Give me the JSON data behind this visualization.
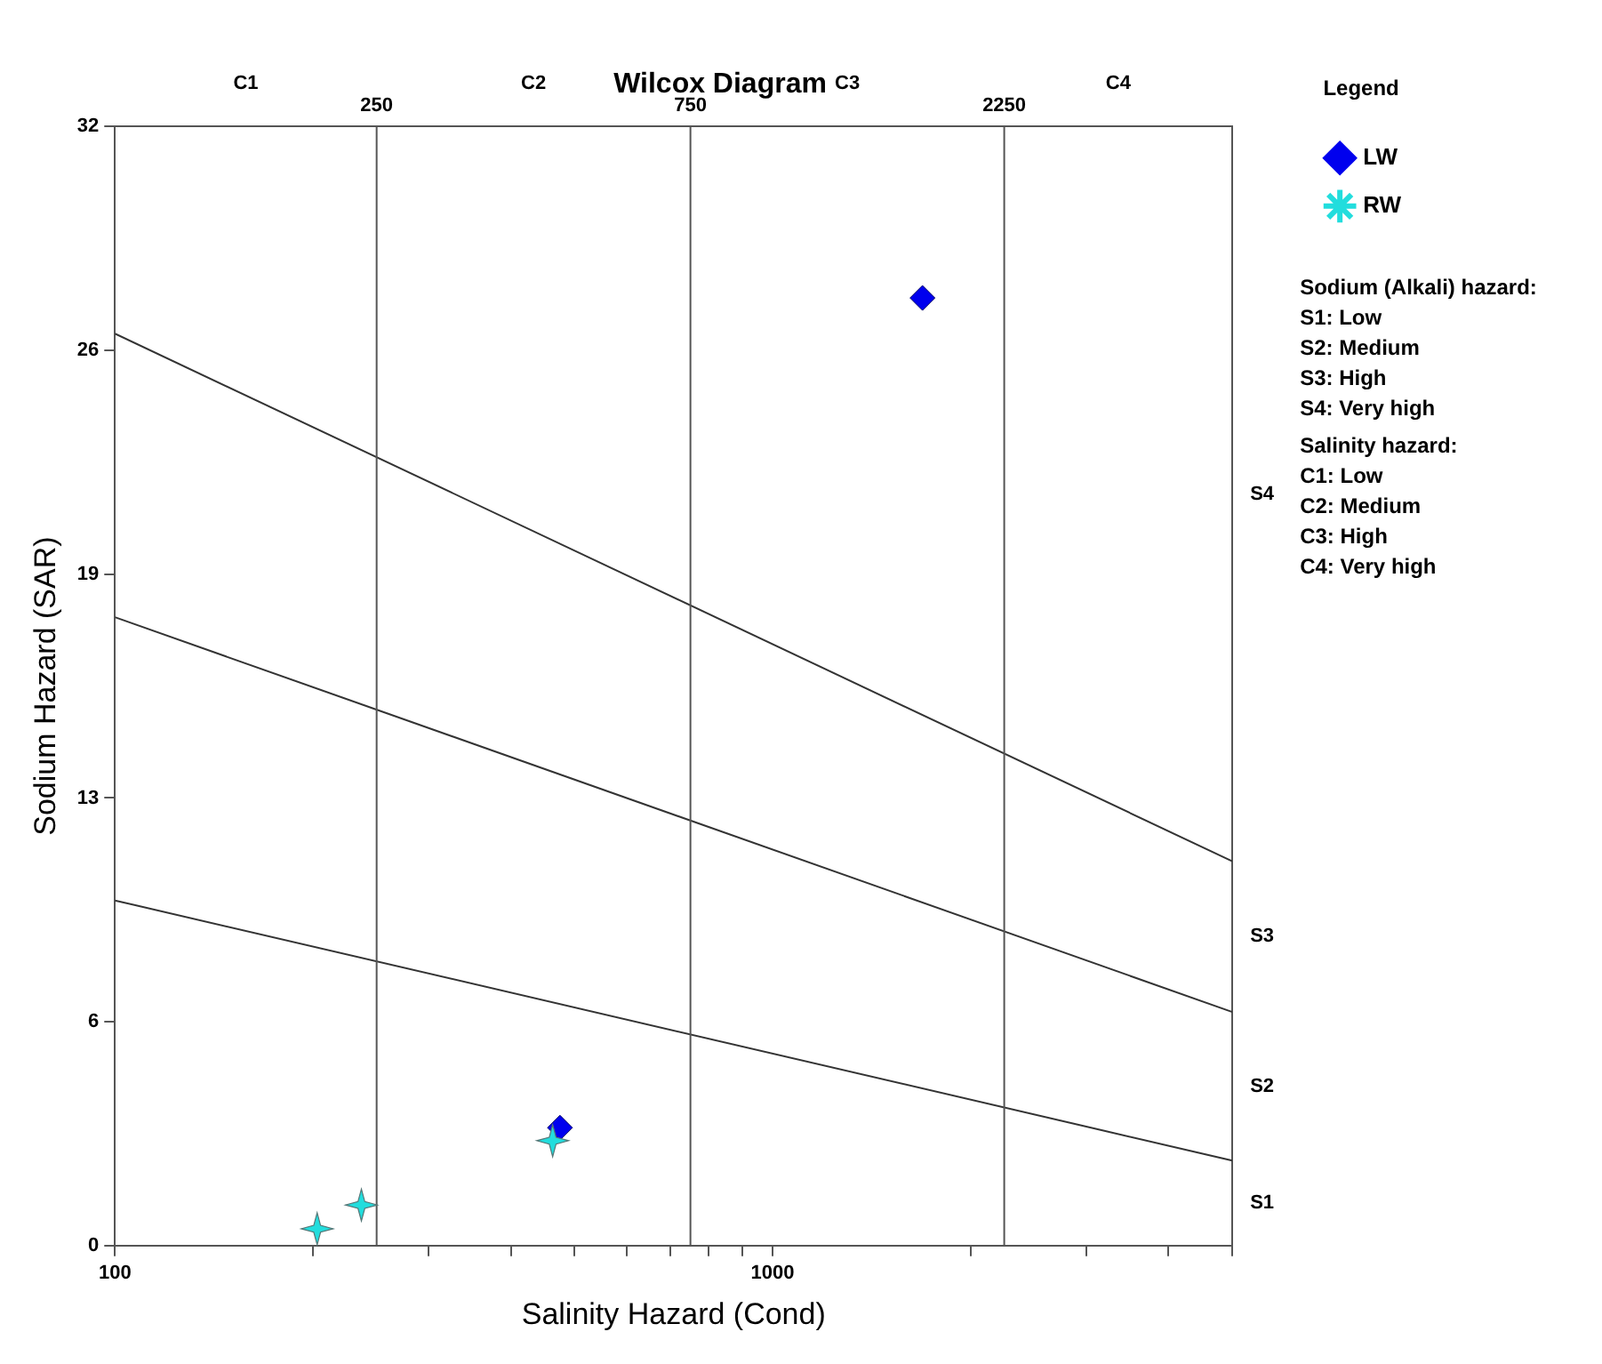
{
  "chart_data": {
    "type": "scatter",
    "title": "Wilcox Diagram",
    "xlabel": "Salinity Hazard (Cond)",
    "ylabel": "Sodium Hazard (SAR)",
    "legend_title": "Legend",
    "legend": "top right",
    "log": "x",
    "xlim": [
      100,
      5000
    ],
    "xticks": [
      100,
      {
        "value": 200,
        "label": null
      },
      {
        "value": 300,
        "label": null
      },
      {
        "value": 400,
        "label": null
      },
      {
        "value": 500,
        "label": null
      },
      {
        "value": 600,
        "label": null
      },
      {
        "value": 700,
        "label": null
      },
      {
        "value": 800,
        "label": null
      },
      {
        "value": 900,
        "label": null
      },
      1000,
      {
        "value": 2000,
        "label": null
      },
      {
        "value": 3000,
        "label": null
      },
      {
        "value": 4000,
        "label": null
      },
      {
        "value": 5000,
        "label": null
      }
    ],
    "ylim": [
      0,
      32
    ],
    "yticks": [
      0,
      {
        "value": 6.4,
        "label": "6"
      },
      {
        "value": 12.8,
        "label": "13"
      },
      {
        "value": 19.2,
        "label": "19"
      },
      {
        "value": 25.6,
        "label": "26"
      },
      32
    ],
    "ref_lines": [
      {
        "axis": "x",
        "value": 250,
        "label": "250",
        "color": "#555555"
      },
      {
        "axis": "x",
        "value": 750,
        "label": "750",
        "color": "#555555"
      },
      {
        "axis": "x",
        "value": 2250,
        "label": "2250",
        "color": "#555555"
      }
    ],
    "series": [
      {
        "type": "line",
        "color": "#333333",
        "x": [
          100,
          5000
        ],
        "values": [
          9.87,
          2.43
        ],
        "marker": "none"
      },
      {
        "type": "line",
        "color": "#333333",
        "x": [
          100,
          5000
        ],
        "values": [
          17.97,
          6.68
        ],
        "marker": "none"
      },
      {
        "type": "line",
        "color": "#333333",
        "x": [
          100,
          5000
        ],
        "values": [
          26.08,
          10.99
        ],
        "marker": "none"
      },
      {
        "name": "LW",
        "color": "#0000ee",
        "marker": "diamond",
        "x": [
          475,
          1690
        ],
        "values": [
          3.37,
          27.1
        ]
      },
      {
        "name": "RW",
        "color": "#22dddd",
        "marker": "star",
        "x": [
          203,
          237,
          463
        ],
        "values": [
          0.48,
          1.16,
          3.0
        ]
      }
    ],
    "annotations": [
      "C1",
      "C2",
      "C3",
      "C4",
      "S1",
      "S2",
      "S3",
      "S4",
      "Sodium (Alkali) hazard:",
      "S1: Low",
      "S2: Medium",
      "S3: High",
      "S4: Very high",
      "Salinity hazard:",
      "C1: Low",
      "C2: Medium",
      "C3: High",
      "C4: Very high"
    ]
  }
}
